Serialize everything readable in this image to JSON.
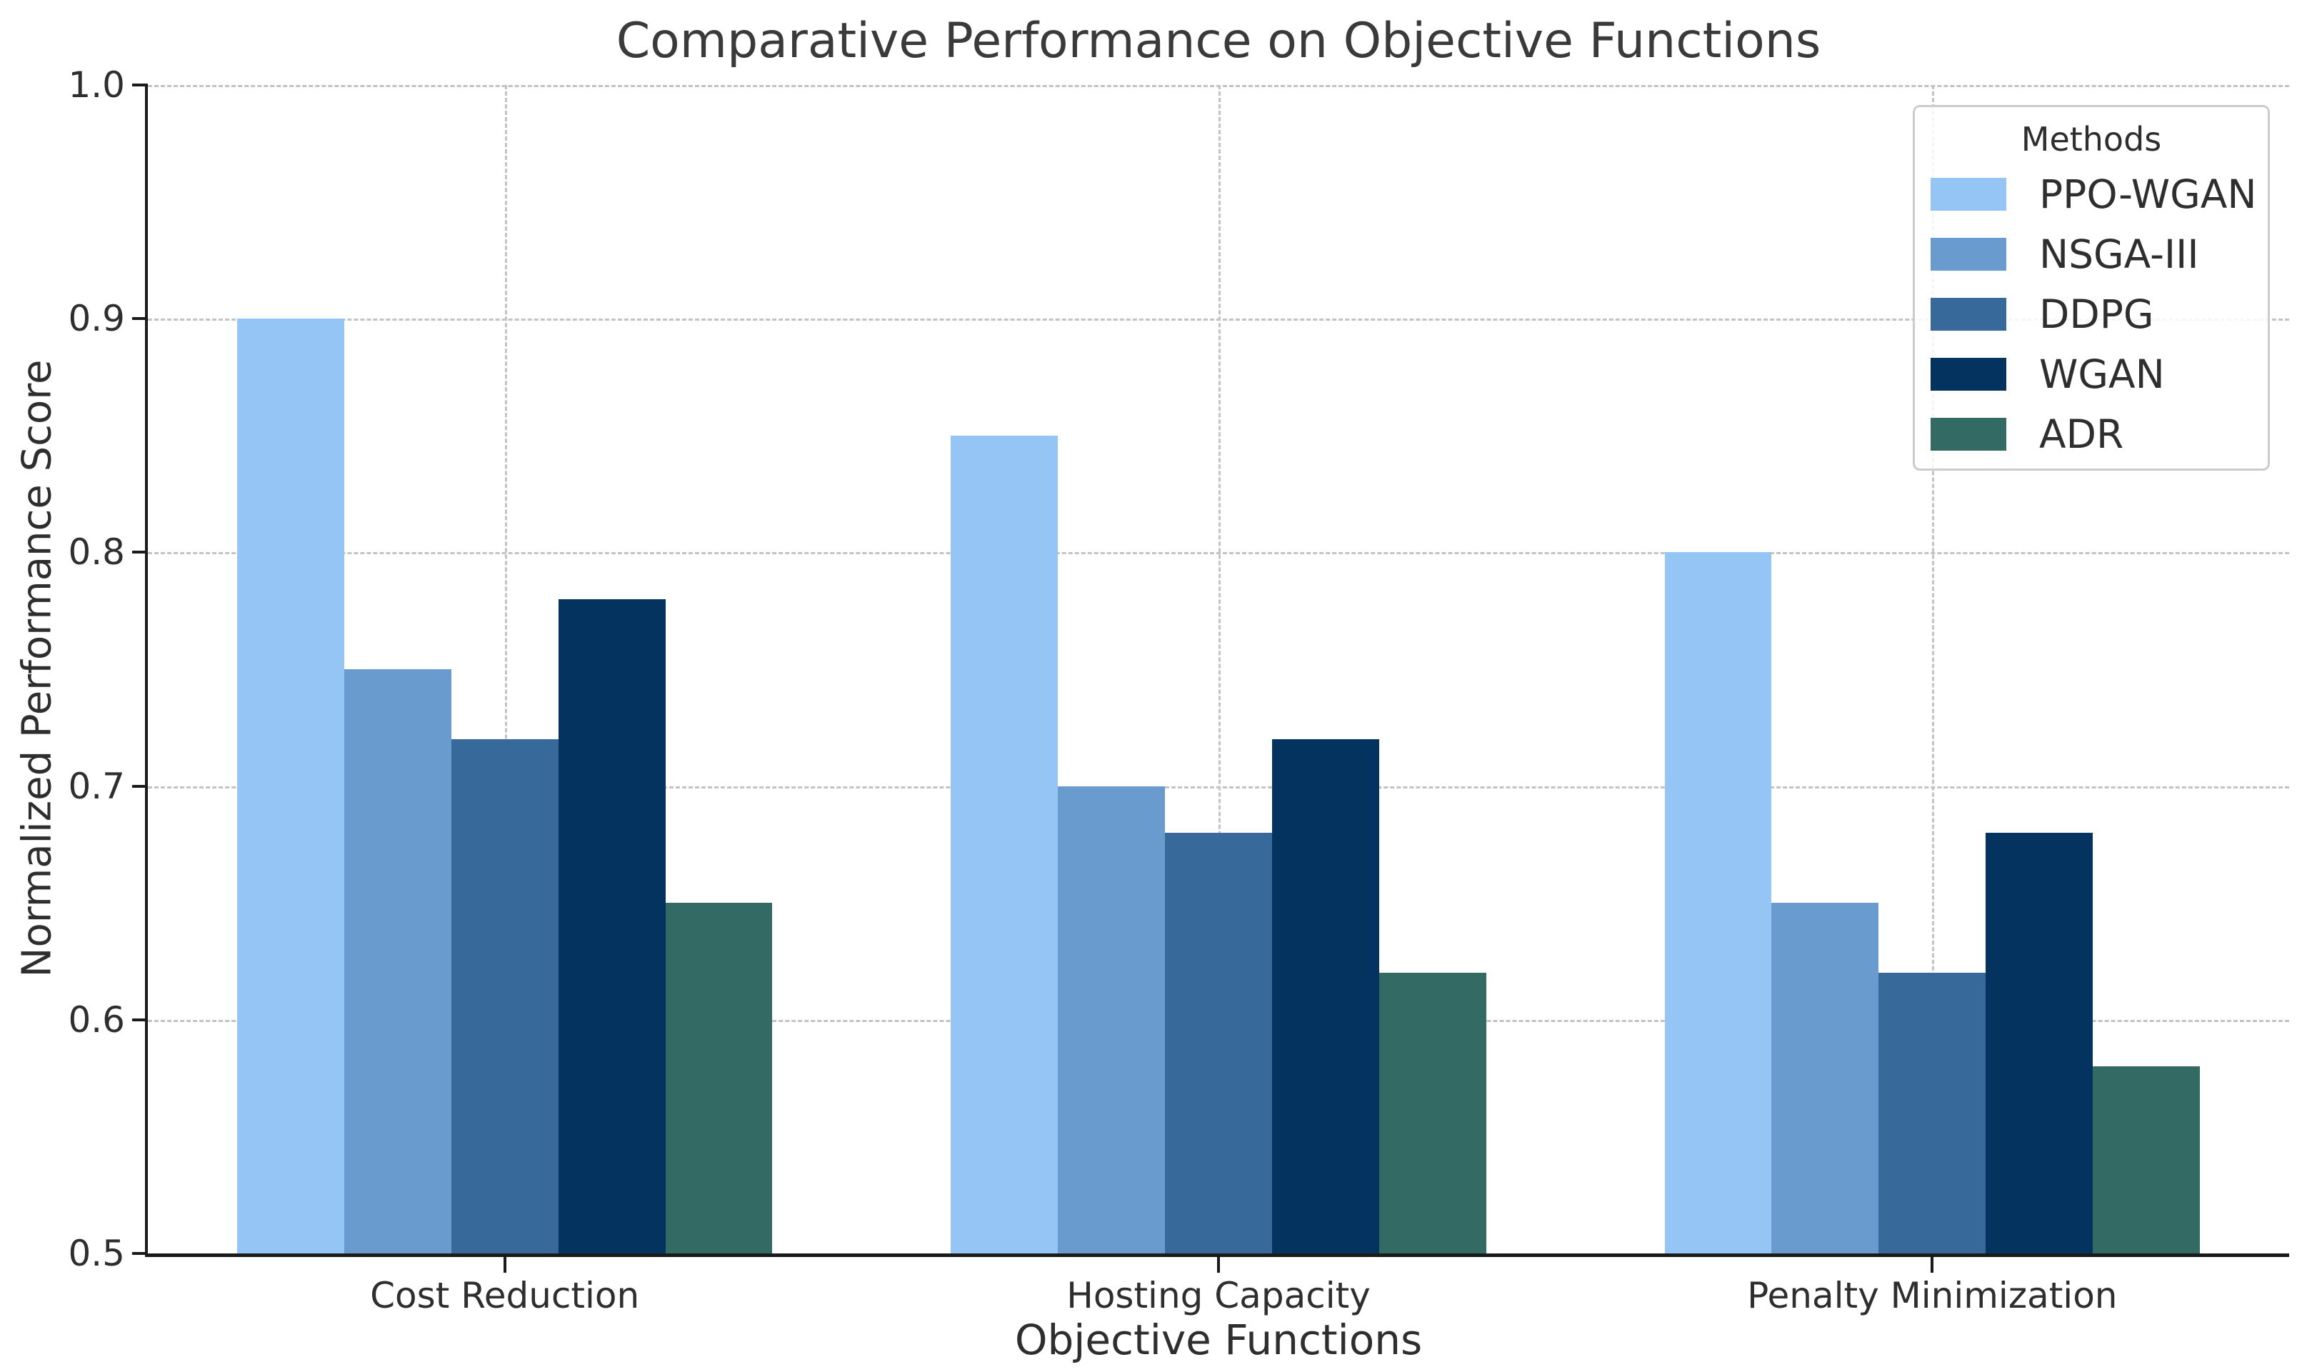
{
  "title": "Comparative Performance on Objective Functions",
  "chart_data": {
    "type": "bar",
    "title": "Comparative Performance on Objective Functions",
    "xlabel": "Objective Functions",
    "ylabel": "Normalized Performance Score",
    "categories": [
      "Cost Reduction",
      "Hosting Capacity",
      "Penalty Minimization"
    ],
    "series": [
      {
        "name": "PPO-WGAN",
        "color": "#95C5F5",
        "values": [
          0.9,
          0.85,
          0.8
        ]
      },
      {
        "name": "NSGA-III",
        "color": "#6A9BCE",
        "values": [
          0.75,
          0.7,
          0.65
        ]
      },
      {
        "name": "DDPG",
        "color": "#38699B",
        "values": [
          0.72,
          0.68,
          0.62
        ]
      },
      {
        "name": "WGAN",
        "color": "#043360",
        "values": [
          0.78,
          0.72,
          0.68
        ]
      },
      {
        "name": "ADR",
        "color": "#346A64",
        "values": [
          0.65,
          0.62,
          0.58
        ]
      }
    ],
    "ylim": [
      0.5,
      1.0
    ],
    "ytick_labels": [
      "1.0",
      "0.9",
      "0.8",
      "0.7",
      "0.6",
      "0.5"
    ],
    "grid": "dashed",
    "legend": {
      "title": "Methods",
      "position": "upper-right"
    },
    "colors": {
      "grid": "#c3c3c3",
      "spine": "#1a1a1a",
      "text": "#2e2e2e",
      "title_text": "#3a3a3a",
      "legend_border": "#cccccc",
      "background": "#ffffff"
    }
  }
}
